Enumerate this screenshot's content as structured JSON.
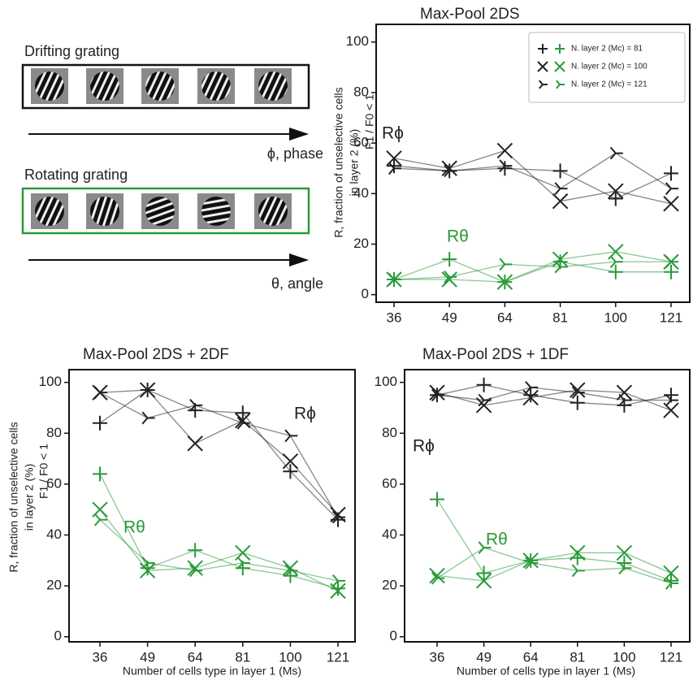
{
  "diagram": {
    "drifting": {
      "title": "Drifting grating",
      "axis": "ϕ, phase"
    },
    "rotating": {
      "title": "Rotating grating",
      "axis": "θ, angle"
    }
  },
  "chart_data": [
    {
      "type": "line",
      "title": "Max-Pool 2DS",
      "ylabel": [
        "R, fraction of unselective cells",
        "in layer 2 (%)"
      ],
      "ylabel2": "F1 / F0 < 1",
      "categories": [
        36,
        49,
        64,
        81,
        100,
        121
      ],
      "ylim": [
        -3,
        107
      ],
      "yticks": [
        0,
        20,
        40,
        60,
        80,
        100
      ],
      "grid": false,
      "legend": "upper right",
      "annotations": [
        {
          "text": "Rϕ",
          "color": "#222222"
        },
        {
          "text": "Rθ",
          "color": "#2a9a3a"
        }
      ],
      "series": [
        {
          "name": "N. layer 2 (Mc) = 81",
          "marker": "plus",
          "color": "#222222",
          "values": [
            51,
            49,
            50,
            49,
            38,
            48
          ]
        },
        {
          "name": "N. layer 2 (Mc) = 100",
          "marker": "x",
          "color": "#222222",
          "values": [
            54,
            50,
            57,
            37,
            41,
            36
          ]
        },
        {
          "name": "N. layer 2 (Mc) = 121",
          "marker": "tri",
          "color": "#222222",
          "values": [
            50,
            49,
            51,
            42,
            56,
            42
          ]
        },
        {
          "marker": "plus",
          "color": "#2a9a3a",
          "values": [
            6,
            14,
            5,
            13,
            9,
            9
          ]
        },
        {
          "marker": "x",
          "color": "#2a9a3a",
          "values": [
            6,
            6,
            5,
            14,
            17,
            13
          ]
        },
        {
          "marker": "tri",
          "color": "#2a9a3a",
          "values": [
            6,
            7,
            12,
            11,
            13,
            13
          ]
        }
      ]
    },
    {
      "type": "line",
      "title": "Max-Pool 2DS + 2DF",
      "ylabel": [
        "R, fraction of unselective cells",
        "in layer 2 (%)"
      ],
      "ylabel2": "F1 / F0 < 1",
      "xlabel": "Number of cells type in layer 1 (Ms)",
      "categories": [
        36,
        49,
        64,
        81,
        100,
        121
      ],
      "ylim": [
        -2,
        105
      ],
      "yticks": [
        0,
        20,
        40,
        60,
        80,
        100
      ],
      "grid": false,
      "annotations": [
        {
          "text": "Rϕ",
          "color": "#222222"
        },
        {
          "text": "Rθ",
          "color": "#2a9a3a"
        }
      ],
      "series": [
        {
          "marker": "plus",
          "color": "#222222",
          "values": [
            84,
            97,
            89,
            88,
            65,
            46
          ]
        },
        {
          "marker": "x",
          "color": "#222222",
          "values": [
            96,
            97,
            76,
            85,
            69,
            48
          ]
        },
        {
          "marker": "tri",
          "color": "#222222",
          "values": [
            96,
            86,
            91,
            84,
            79,
            47
          ]
        },
        {
          "marker": "plus",
          "color": "#2a9a3a",
          "values": [
            64,
            27,
            34,
            27,
            24,
            19
          ]
        },
        {
          "marker": "x",
          "color": "#2a9a3a",
          "values": [
            50,
            26,
            27,
            33,
            27,
            18
          ]
        },
        {
          "marker": "tri",
          "color": "#2a9a3a",
          "values": [
            46,
            29,
            26,
            29,
            26,
            22
          ]
        }
      ]
    },
    {
      "type": "line",
      "title": "Max-Pool 2DS + 1DF",
      "xlabel": "Number of cells type in layer 1 (Ms)",
      "categories": [
        36,
        49,
        64,
        81,
        100,
        121
      ],
      "ylim": [
        -2,
        105
      ],
      "yticks": [
        0,
        20,
        40,
        60,
        80,
        100
      ],
      "grid": false,
      "annotations": [
        {
          "text": "Rϕ",
          "color": "#222222"
        },
        {
          "text": "Rθ",
          "color": "#2a9a3a"
        }
      ],
      "series": [
        {
          "marker": "plus",
          "color": "#222222",
          "values": [
            95,
            99,
            95,
            92,
            91,
            95
          ]
        },
        {
          "marker": "x",
          "color": "#222222",
          "values": [
            96,
            91,
            94,
            97,
            96,
            89
          ]
        },
        {
          "marker": "tri",
          "color": "#222222",
          "values": [
            95,
            93,
            98,
            96,
            93,
            93
          ]
        },
        {
          "marker": "plus",
          "color": "#2a9a3a",
          "values": [
            54,
            25,
            30,
            31,
            29,
            22
          ]
        },
        {
          "marker": "x",
          "color": "#2a9a3a",
          "values": [
            24,
            22,
            30,
            33,
            33,
            25
          ]
        },
        {
          "marker": "tri",
          "color": "#2a9a3a",
          "values": [
            23,
            35,
            29,
            26,
            27,
            21
          ]
        }
      ]
    }
  ]
}
